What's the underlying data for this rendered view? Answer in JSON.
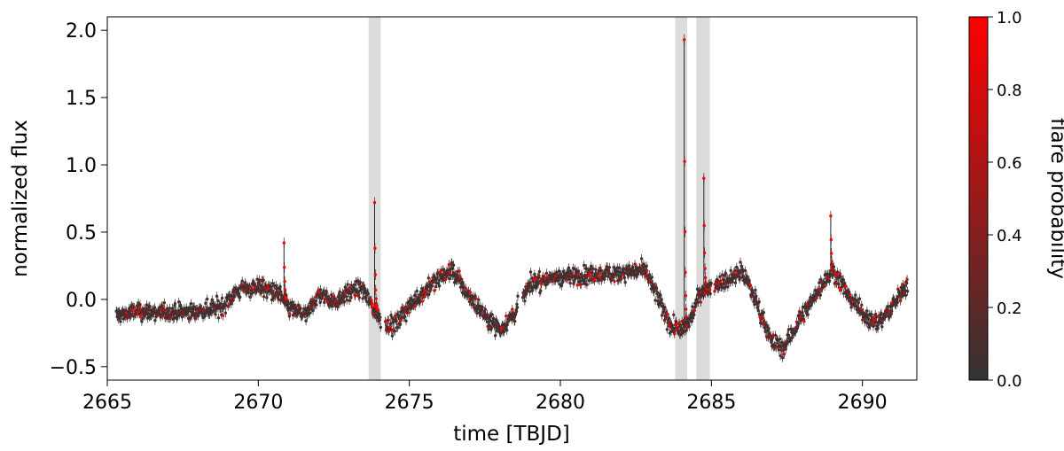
{
  "chart_data": {
    "type": "scatter",
    "xlabel": "time [TBJD]",
    "ylabel": "normalized flux",
    "xlim": [
      2665.0,
      2691.8
    ],
    "ylim": [
      -0.6,
      2.1
    ],
    "xticks": [
      2665,
      2670,
      2675,
      2680,
      2685,
      2690
    ],
    "xtick_labels": [
      "2665",
      "2670",
      "2675",
      "2680",
      "2685",
      "2690"
    ],
    "yticks": [
      -0.5,
      0.0,
      0.5,
      1.0,
      1.5,
      2.0
    ],
    "ytick_labels": [
      "−0.5",
      "0.0",
      "0.5",
      "1.0",
      "1.5",
      "2.0"
    ],
    "grid": false,
    "highlight_spans": [
      {
        "x0": 2673.65,
        "x1": 2674.05
      },
      {
        "x0": 2683.8,
        "x1": 2684.2
      },
      {
        "x0": 2684.5,
        "x1": 2684.95
      }
    ],
    "colorbar": {
      "label": "flare probability",
      "range": [
        0.0,
        1.0
      ],
      "ticks": [
        0.0,
        0.2,
        0.4,
        0.6,
        0.8,
        1.0
      ],
      "tick_labels": [
        "0.0",
        "0.2",
        "0.4",
        "0.6",
        "0.8",
        "1.0"
      ],
      "color_low": "#333333",
      "color_high": "#ff0000"
    },
    "colors": {
      "errorbar": "#222222",
      "span": "#dcdcdc"
    },
    "baseline_curve": {
      "x": [
        2665.3,
        2666.0,
        2667.0,
        2668.0,
        2668.8,
        2669.3,
        2670.0,
        2670.7,
        2671.0,
        2671.6,
        2672.0,
        2672.5,
        2673.0,
        2673.5,
        2674.0,
        2674.5,
        2675.0,
        2675.5,
        2676.0,
        2676.4,
        2677.0,
        2677.6,
        2678.0,
        2678.5,
        2679.0,
        2680.0,
        2681.0,
        2682.0,
        2682.8,
        2683.2,
        2683.6,
        2684.0,
        2684.3,
        2684.6,
        2685.0,
        2685.5,
        2686.0,
        2686.5,
        2687.0,
        2687.4,
        2688.0,
        2688.5,
        2689.0,
        2689.5,
        2690.0,
        2690.5,
        2691.0,
        2691.5
      ],
      "y": [
        -0.12,
        -0.09,
        -0.1,
        -0.09,
        -0.05,
        0.06,
        0.1,
        0.04,
        -0.06,
        -0.12,
        0.04,
        -0.02,
        0.06,
        0.07,
        -0.15,
        -0.2,
        -0.05,
        0.06,
        0.16,
        0.22,
        0.02,
        -0.14,
        -0.22,
        -0.1,
        0.12,
        0.17,
        0.18,
        0.2,
        0.22,
        0.02,
        -0.18,
        -0.24,
        -0.15,
        0.05,
        0.1,
        0.14,
        0.22,
        -0.02,
        -0.32,
        -0.36,
        -0.12,
        0.05,
        0.22,
        0.05,
        -0.1,
        -0.18,
        -0.05,
        0.12
      ]
    },
    "flares": [
      {
        "x": 2670.85,
        "peak": 0.42
      },
      {
        "x": 2673.85,
        "peak": 0.72
      },
      {
        "x": 2684.1,
        "peak": 1.93
      },
      {
        "x": 2684.75,
        "peak": 0.9
      },
      {
        "x": 2688.95,
        "peak": 0.62
      }
    ]
  }
}
